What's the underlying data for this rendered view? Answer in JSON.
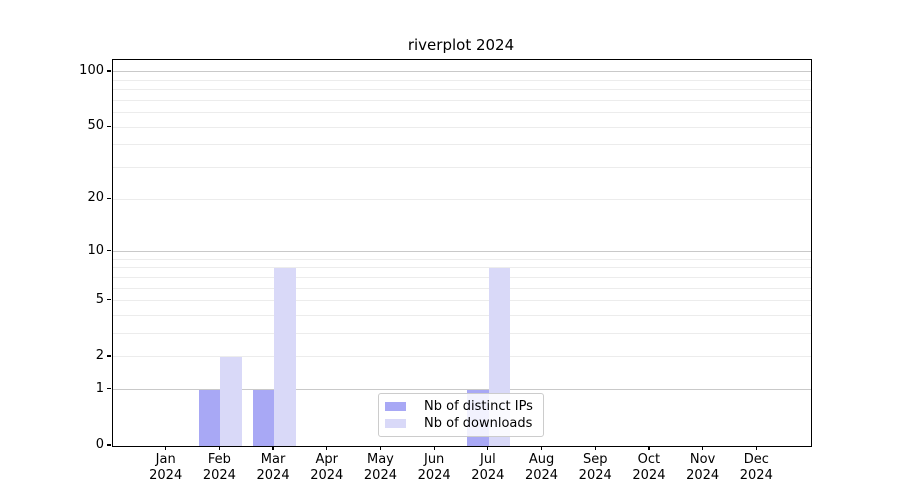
{
  "title": "riverplot 2024",
  "chart_data": {
    "type": "bar",
    "title": "riverplot 2024",
    "categories": [
      "Jan 2024",
      "Feb 2024",
      "Mar 2024",
      "Apr 2024",
      "May 2024",
      "Jun 2024",
      "Jul 2024",
      "Aug 2024",
      "Sep 2024",
      "Oct 2024",
      "Nov 2024",
      "Dec 2024"
    ],
    "x_tick_months": [
      "Jan",
      "Feb",
      "Mar",
      "Apr",
      "May",
      "Jun",
      "Jul",
      "Aug",
      "Sep",
      "Oct",
      "Nov",
      "Dec"
    ],
    "x_tick_year": "2024",
    "series": [
      {
        "name": "Nb of distinct IPs",
        "color": "#a8a8f5",
        "values": [
          0,
          1,
          1,
          0,
          0,
          0,
          1,
          0,
          0,
          0,
          0,
          0
        ]
      },
      {
        "name": "Nb of downloads",
        "color": "#d9d9f8",
        "values": [
          0,
          2,
          8,
          0,
          0,
          0,
          8,
          0,
          0,
          0,
          0,
          0
        ]
      }
    ],
    "yscale": "log1p",
    "ylim": [
      0,
      116
    ],
    "y_ticks": [
      0,
      1,
      2,
      5,
      10,
      20,
      50,
      100
    ],
    "y_major_gridlines": [
      1,
      10,
      100
    ],
    "y_minor_gridlines": [
      2,
      3,
      4,
      5,
      6,
      7,
      8,
      9,
      20,
      30,
      40,
      50,
      60,
      70,
      80,
      90
    ],
    "grid": true,
    "legend": {
      "position": "lower center",
      "labels": [
        "Nb of distinct IPs",
        "Nb of downloads"
      ]
    },
    "colors": {
      "major_grid": "#c9c9c9",
      "minor_grid": "#ececec",
      "spine": "#000000",
      "background": "#ffffff"
    }
  }
}
